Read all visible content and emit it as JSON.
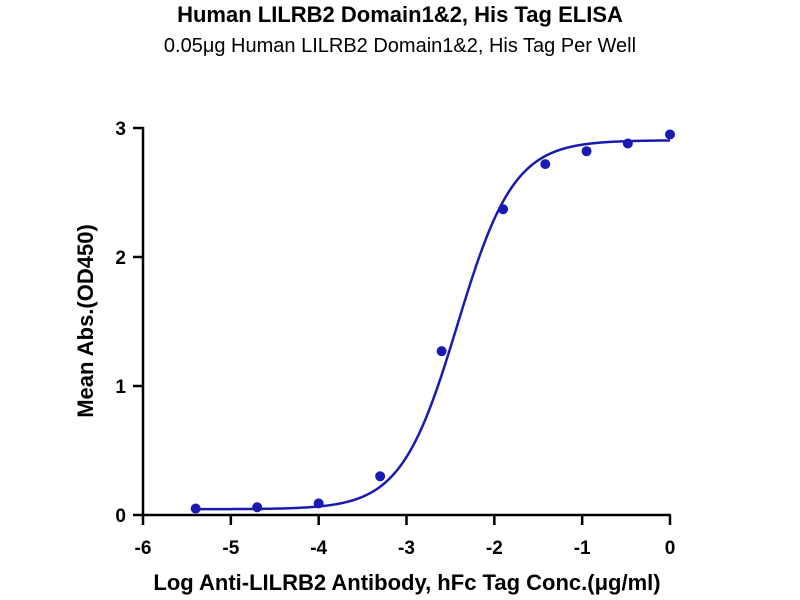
{
  "chart_data": {
    "type": "scatter",
    "title": "Human LILRB2 Domain1&2, His Tag ELISA",
    "subtitle": "0.05μg Human LILRB2 Domain1&2, His Tag Per Well",
    "xlabel": "Log Anti-LILRB2 Antibody, hFc Tag Conc.(μg/ml)",
    "ylabel": "Mean Abs.(OD450)",
    "xlim": [
      -6,
      0
    ],
    "ylim": [
      0,
      3
    ],
    "xticks": [
      -6,
      -5,
      -4,
      -3,
      -2,
      -1,
      0
    ],
    "yticks": [
      0,
      1,
      2,
      3
    ],
    "grid": false,
    "colors": {
      "series": "#1a1ab3",
      "axis": "#000000"
    },
    "series": [
      {
        "x": [
          -5.4,
          -4.7,
          -4.0,
          -3.3,
          -2.6,
          -1.9,
          -1.42,
          -0.95,
          -0.48,
          0.0
        ],
        "y": [
          0.05,
          0.06,
          0.09,
          0.3,
          1.27,
          2.37,
          2.72,
          2.82,
          2.88,
          2.95
        ]
      }
    ],
    "fit": {
      "model": "4PL",
      "bottom": 0.045,
      "top": 2.905,
      "logEC50": -2.42,
      "hill": 1.35
    }
  }
}
